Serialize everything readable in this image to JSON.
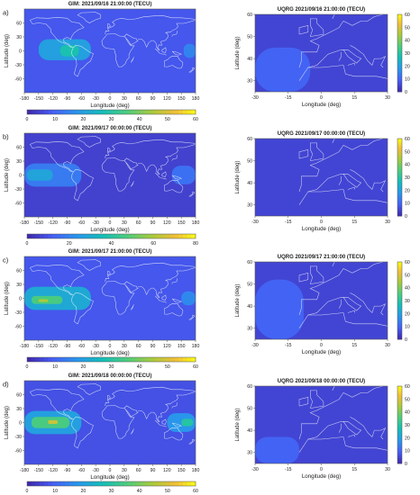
{
  "figure": {
    "panels": [
      {
        "letter": "a)",
        "gim_title": "GIM: 2021/09/16 21:00:00 (TECU)",
        "uqrg_title": "UQRG 2021/09/16 21:00:00 (TECU)",
        "gim_ylabel": "Latitude (deg)",
        "uqrg_ylabel": "Latitude (deg)"
      },
      {
        "letter": "b)",
        "gim_title": "GIM: 2021/09/17 00:00:00 (TECU)",
        "uqrg_title": "UQRG 2021/09/17 00:00:00 (TECU)",
        "gim_ylabel": "Latitude (deg)",
        "uqrg_ylabel": "Latitude (deg)"
      },
      {
        "letter": "c)",
        "gim_title": "GIM: 2021/09/17 21:00:00 (TECU)",
        "uqrg_title": "UQRG 2021/09/17 21:00:00 (TECU)",
        "gim_ylabel": "Latitude (deg)",
        "uqrg_ylabel": "Latitude (deg)"
      },
      {
        "letter": "d)",
        "gim_title": "GIM: 2021/09/18 00:00:00 (TECU)",
        "uqrg_title": "UQRG 2021/09/18 00:00:00 (TECU)",
        "gim_ylabel": "Lattitude (deg)",
        "uqrg_ylabel": "Latitude (deg)"
      }
    ]
  },
  "chart_data": [
    {
      "type": "heatmap",
      "panel": "a) left",
      "title": "GIM: 2021/09/16 21:00:00 (TECU)",
      "xlabel": "Longitude (deg)",
      "ylabel": "Latitude (deg)",
      "xlim": [
        -180,
        180
      ],
      "ylim": [
        -90,
        90
      ],
      "xticks": [
        -180,
        -150,
        -120,
        -90,
        -60,
        -30,
        0,
        30,
        60,
        90,
        120,
        150,
        180
      ],
      "yticks": [
        60,
        30,
        0,
        -30,
        -60
      ],
      "colorbar": {
        "orientation": "horizontal",
        "range": [
          0,
          60
        ],
        "ticks": [
          0,
          10,
          20,
          30,
          40,
          50,
          60
        ]
      },
      "regions": [
        {
          "lon": [
            -150,
            -40
          ],
          "lat": [
            -20,
            25
          ],
          "tec": 20
        },
        {
          "lon": [
            -105,
            -65
          ],
          "lat": [
            -12,
            12
          ],
          "tec": 28
        },
        {
          "lon": [
            155,
            180
          ],
          "lat": [
            -15,
            15
          ],
          "tec": 15
        }
      ],
      "background_tec": 8
    },
    {
      "type": "heatmap",
      "panel": "a) right",
      "title": "UQRG 2021/09/16 21:00:00 (TECU)",
      "xlabel": "Longitude (deg)",
      "ylabel": "Latitude (deg)",
      "xlim": [
        -30,
        30
      ],
      "ylim": [
        25,
        60
      ],
      "xticks": [
        -30,
        -15,
        0,
        15,
        30
      ],
      "yticks": [
        60,
        50,
        40,
        30
      ],
      "colorbar": {
        "orientation": "vertical",
        "range": [
          0,
          60
        ],
        "ticks": [
          0,
          10,
          20,
          30,
          40,
          50,
          60
        ]
      },
      "regions": [
        {
          "lon": [
            -30,
            -5
          ],
          "lat": [
            25,
            45
          ],
          "tec": 10
        }
      ],
      "background_tec": 5
    },
    {
      "type": "heatmap",
      "panel": "b) left",
      "title": "GIM: 2021/09/17 00:00:00 (TECU)",
      "xlabel": "Longitude (deg)",
      "ylabel": "Latitude (deg)",
      "xlim": [
        -180,
        180
      ],
      "ylim": [
        -90,
        90
      ],
      "xticks": [
        -180,
        -150,
        -120,
        -90,
        -60,
        -30,
        0,
        30,
        60,
        90,
        120,
        150,
        180
      ],
      "yticks": [
        60,
        30,
        0,
        -30,
        -60
      ],
      "colorbar": {
        "orientation": "horizontal",
        "range": [
          0,
          80
        ],
        "ticks": [
          0,
          20,
          40,
          60,
          80
        ]
      },
      "regions": [
        {
          "lon": [
            -180,
            -60
          ],
          "lat": [
            -25,
            25
          ],
          "tec": 18
        },
        {
          "lon": [
            -175,
            -120
          ],
          "lat": [
            -12,
            12
          ],
          "tec": 28
        },
        {
          "lon": [
            130,
            180
          ],
          "lat": [
            -20,
            20
          ],
          "tec": 16
        }
      ],
      "background_tec": 6
    },
    {
      "type": "heatmap",
      "panel": "b) right",
      "title": "UQRG 2021/09/17 00:00:00 (TECU)",
      "xlabel": "Longitude (deg)",
      "ylabel": "Latitude (deg)",
      "xlim": [
        -30,
        30
      ],
      "ylim": [
        25,
        60
      ],
      "xticks": [
        -30,
        -15,
        0,
        15,
        30
      ],
      "yticks": [
        60,
        50,
        40,
        30
      ],
      "colorbar": {
        "orientation": "vertical",
        "range": [
          0,
          60
        ],
        "ticks": [
          0,
          10,
          20,
          30,
          40,
          50,
          60
        ]
      },
      "regions": [],
      "background_tec": 5
    },
    {
      "type": "heatmap",
      "panel": "c) left",
      "title": "GIM: 2021/09/17 21:00:00 (TECU)",
      "xlabel": "Longitude (deg)",
      "ylabel": "Latitude (deg)",
      "xlim": [
        -180,
        180
      ],
      "ylim": [
        -90,
        90
      ],
      "xticks": [
        -180,
        -150,
        -120,
        -90,
        -60,
        -30,
        0,
        30,
        60,
        90,
        120,
        150,
        180
      ],
      "yticks": [
        60,
        30,
        0,
        -30,
        -60
      ],
      "colorbar": {
        "orientation": "horizontal",
        "range": [
          0,
          60
        ],
        "ticks": [
          0,
          10,
          20,
          30,
          40,
          50,
          60
        ]
      },
      "regions": [
        {
          "lon": [
            -180,
            -40
          ],
          "lat": [
            -25,
            25
          ],
          "tec": 22
        },
        {
          "lon": [
            -165,
            -100
          ],
          "lat": [
            -12,
            5
          ],
          "tec": 35
        },
        {
          "lon": [
            -150,
            -130
          ],
          "lat": [
            -8,
            -2
          ],
          "tec": 45
        },
        {
          "lon": [
            150,
            180
          ],
          "lat": [
            -15,
            15
          ],
          "tec": 16
        }
      ],
      "background_tec": 8
    },
    {
      "type": "heatmap",
      "panel": "c) right",
      "title": "UQRG 2021/09/17 21:00:00 (TECU)",
      "xlabel": "Longitude (deg)",
      "ylabel": "Latitude (deg)",
      "xlim": [
        -30,
        30
      ],
      "ylim": [
        25,
        60
      ],
      "xticks": [
        -30,
        -15,
        0,
        15,
        30
      ],
      "yticks": [
        60,
        50,
        40,
        30
      ],
      "colorbar": {
        "orientation": "vertical",
        "range": [
          0,
          60
        ],
        "ticks": [
          0,
          10,
          20,
          30,
          40,
          50,
          60
        ]
      },
      "regions": [
        {
          "lon": [
            -30,
            -8
          ],
          "lat": [
            25,
            52
          ],
          "tec": 10
        }
      ],
      "background_tec": 5
    },
    {
      "type": "heatmap",
      "panel": "d) left",
      "title": "GIM: 2021/09/18 00:00:00 (TECU)",
      "xlabel": "Longitude (deg)",
      "ylabel": "Latitude (deg)",
      "xlim": [
        -180,
        180
      ],
      "ylim": [
        -90,
        90
      ],
      "xticks": [
        -180,
        -150,
        -120,
        -90,
        -60,
        -30,
        0,
        30,
        60,
        90,
        120,
        150,
        180
      ],
      "yticks": [
        60,
        30,
        0,
        -30,
        -60
      ],
      "colorbar": {
        "orientation": "horizontal",
        "range": [
          0,
          60
        ],
        "ticks": [
          0,
          10,
          20,
          30,
          40,
          50,
          60
        ]
      },
      "regions": [
        {
          "lon": [
            -180,
            -60
          ],
          "lat": [
            -25,
            25
          ],
          "tec": 20
        },
        {
          "lon": [
            -165,
            -85
          ],
          "lat": [
            -12,
            12
          ],
          "tec": 35
        },
        {
          "lon": [
            -130,
            -110
          ],
          "lat": [
            -3,
            5
          ],
          "tec": 48
        },
        {
          "lon": [
            120,
            180
          ],
          "lat": [
            -20,
            20
          ],
          "tec": 18
        },
        {
          "lon": [
            150,
            175
          ],
          "lat": [
            -8,
            8
          ],
          "tec": 30
        }
      ],
      "background_tec": 7
    },
    {
      "type": "heatmap",
      "panel": "d) right",
      "title": "UQRG 2021/09/18 00:00:00 (TECU)",
      "xlabel": "Longitude (deg)",
      "ylabel": "Latitude (deg)",
      "xlim": [
        -30,
        30
      ],
      "ylim": [
        25,
        60
      ],
      "xticks": [
        -30,
        -15,
        0,
        15,
        30
      ],
      "yticks": [
        60,
        50,
        40,
        30
      ],
      "colorbar": {
        "orientation": "vertical",
        "range": [
          0,
          60
        ],
        "ticks": [
          0,
          10,
          20,
          30,
          40,
          50,
          60
        ]
      },
      "regions": [
        {
          "lon": [
            -30,
            -10
          ],
          "lat": [
            25,
            37
          ],
          "tec": 10
        }
      ],
      "background_tec": 5
    }
  ]
}
